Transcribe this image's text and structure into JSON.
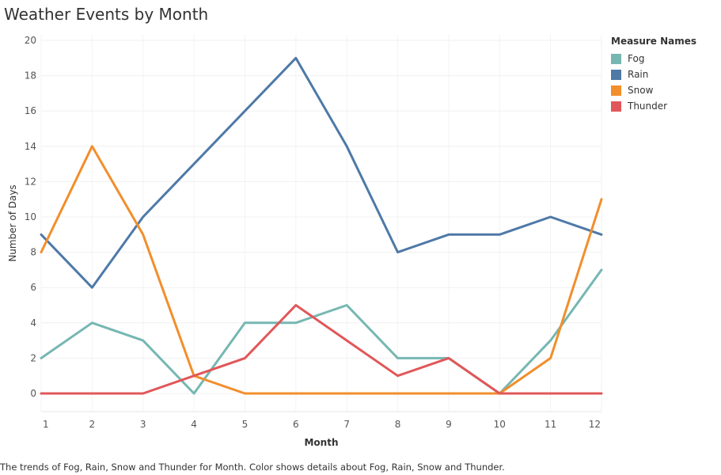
{
  "title": "Weather Events by Month",
  "caption": "The trends of Fog, Rain, Snow and Thunder for Month.  Color shows details about Fog, Rain, Snow and Thunder.",
  "legend": {
    "title": "Measure Names",
    "items": [
      {
        "label": "Fog",
        "color": "#76b7b2"
      },
      {
        "label": "Rain",
        "color": "#4e79a7"
      },
      {
        "label": "Snow",
        "color": "#f28e2b"
      },
      {
        "label": "Thunder",
        "color": "#e15759"
      }
    ]
  },
  "chart_data": {
    "type": "line",
    "x": [
      1,
      2,
      3,
      4,
      5,
      6,
      7,
      8,
      9,
      10,
      11,
      12
    ],
    "xlabel": "Month",
    "ylabel": "Number of Days",
    "ylim": [
      0,
      20
    ],
    "yticks": [
      0,
      2,
      4,
      6,
      8,
      10,
      12,
      14,
      16,
      18,
      20
    ],
    "grid": true,
    "legend_position": "right",
    "series": [
      {
        "name": "Fog",
        "color": "#76b7b2",
        "values": [
          2,
          4,
          3,
          0,
          4,
          4,
          5,
          2,
          2,
          0,
          3,
          7
        ]
      },
      {
        "name": "Rain",
        "color": "#4e79a7",
        "values": [
          9,
          6,
          10,
          13,
          16,
          19,
          14,
          8,
          9,
          9,
          10,
          9
        ]
      },
      {
        "name": "Snow",
        "color": "#f28e2b",
        "values": [
          8,
          14,
          9,
          1,
          0,
          0,
          0,
          0,
          0,
          0,
          2,
          11
        ]
      },
      {
        "name": "Thunder",
        "color": "#e15759",
        "values": [
          0,
          0,
          0,
          1,
          2,
          5,
          3,
          1,
          2,
          0,
          0,
          0
        ]
      }
    ]
  }
}
